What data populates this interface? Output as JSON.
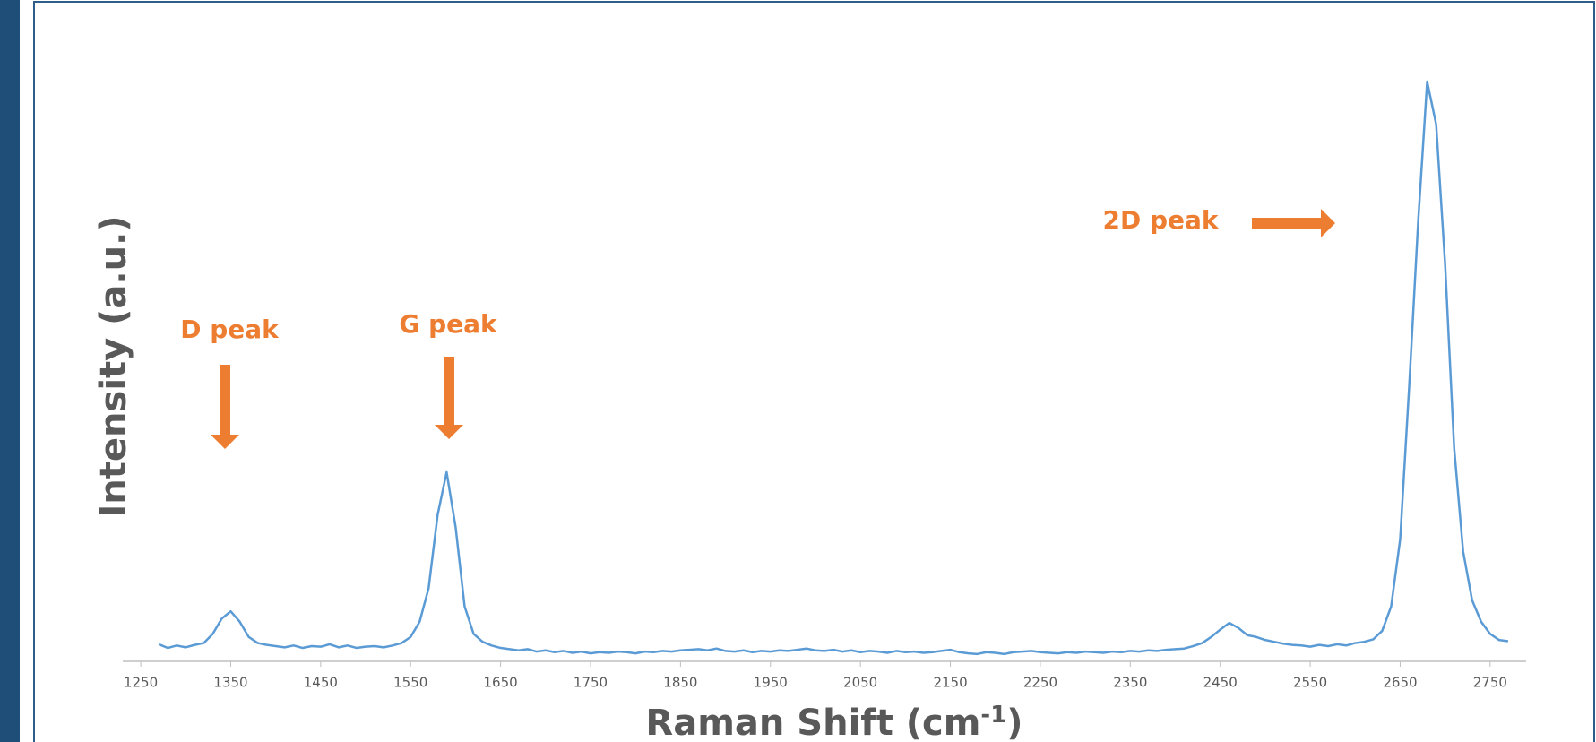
{
  "chart_data": {
    "type": "line",
    "xlabel_parts": [
      "Raman Shift (cm",
      "-1",
      ")"
    ],
    "ylabel": "Intensity (a.u.)",
    "annotations": [
      "D peak",
      "G peak",
      "2D peak"
    ],
    "xlim": [
      1230,
      2790
    ],
    "ylim": [
      0,
      100
    ],
    "xticks": [
      1250,
      1350,
      1450,
      1550,
      1650,
      1750,
      1850,
      1950,
      2050,
      2150,
      2250,
      2350,
      2450,
      2550,
      2650,
      2750
    ],
    "grid": false,
    "series": [
      {
        "color": "#5b9bd5",
        "x": [
          1270,
          1280,
          1290,
          1300,
          1310,
          1320,
          1330,
          1340,
          1350,
          1360,
          1370,
          1380,
          1390,
          1400,
          1410,
          1420,
          1430,
          1440,
          1450,
          1460,
          1470,
          1480,
          1490,
          1500,
          1510,
          1520,
          1530,
          1540,
          1550,
          1560,
          1570,
          1580,
          1590,
          1600,
          1610,
          1620,
          1630,
          1640,
          1650,
          1660,
          1670,
          1680,
          1690,
          1700,
          1710,
          1720,
          1730,
          1740,
          1750,
          1760,
          1770,
          1780,
          1790,
          1800,
          1810,
          1820,
          1830,
          1840,
          1850,
          1860,
          1870,
          1880,
          1890,
          1900,
          1910,
          1920,
          1930,
          1940,
          1950,
          1960,
          1970,
          1980,
          1990,
          2000,
          2010,
          2020,
          2030,
          2040,
          2050,
          2060,
          2070,
          2080,
          2090,
          2100,
          2110,
          2120,
          2130,
          2140,
          2150,
          2160,
          2170,
          2180,
          2190,
          2200,
          2210,
          2220,
          2230,
          2240,
          2250,
          2260,
          2270,
          2280,
          2290,
          2300,
          2310,
          2320,
          2330,
          2340,
          2350,
          2360,
          2370,
          2380,
          2390,
          2400,
          2410,
          2420,
          2430,
          2440,
          2450,
          2460,
          2470,
          2480,
          2490,
          2500,
          2510,
          2520,
          2530,
          2540,
          2550,
          2560,
          2570,
          2580,
          2590,
          2600,
          2610,
          2620,
          2630,
          2640,
          2650,
          2660,
          2670,
          2680,
          2690,
          2700,
          2710,
          2720,
          2730,
          2740,
          2750,
          2760,
          2770
        ],
        "values": [
          2.8,
          2.2,
          2.6,
          2.3,
          2.7,
          3.0,
          4.5,
          7.0,
          8.2,
          6.5,
          4.0,
          3.0,
          2.7,
          2.5,
          2.3,
          2.6,
          2.2,
          2.5,
          2.4,
          2.8,
          2.3,
          2.6,
          2.2,
          2.4,
          2.5,
          2.3,
          2.6,
          3.0,
          4.0,
          6.5,
          12.0,
          24.0,
          31.0,
          22.0,
          9.0,
          4.5,
          3.2,
          2.6,
          2.2,
          2.0,
          1.8,
          2.0,
          1.6,
          1.8,
          1.5,
          1.7,
          1.4,
          1.6,
          1.3,
          1.5,
          1.4,
          1.6,
          1.5,
          1.3,
          1.6,
          1.5,
          1.7,
          1.6,
          1.8,
          1.9,
          2.0,
          1.8,
          2.1,
          1.7,
          1.6,
          1.8,
          1.5,
          1.7,
          1.6,
          1.8,
          1.7,
          1.9,
          2.1,
          1.8,
          1.7,
          1.9,
          1.6,
          1.8,
          1.5,
          1.7,
          1.6,
          1.4,
          1.7,
          1.5,
          1.6,
          1.4,
          1.5,
          1.7,
          1.9,
          1.5,
          1.3,
          1.2,
          1.5,
          1.4,
          1.2,
          1.5,
          1.6,
          1.7,
          1.5,
          1.4,
          1.3,
          1.5,
          1.4,
          1.6,
          1.5,
          1.4,
          1.6,
          1.5,
          1.7,
          1.6,
          1.8,
          1.7,
          1.9,
          2.0,
          2.1,
          2.5,
          3.0,
          4.0,
          5.2,
          6.3,
          5.5,
          4.3,
          4.0,
          3.5,
          3.2,
          2.9,
          2.7,
          2.6,
          2.4,
          2.7,
          2.5,
          2.8,
          2.6,
          3.0,
          3.2,
          3.6,
          5.0,
          9.0,
          20.0,
          45.0,
          72.0,
          95.0,
          88.0,
          65.0,
          35.0,
          18.0,
          10.0,
          6.5,
          4.5,
          3.5,
          3.3
        ]
      }
    ]
  }
}
